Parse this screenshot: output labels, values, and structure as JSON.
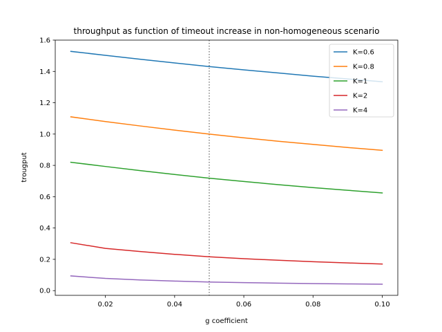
{
  "chart_data": {
    "type": "line",
    "title": "throughput as function of timeout increase in non-homogeneous scenario",
    "xlabel": "g coefficient",
    "ylabel": "trougput",
    "xlim": [
      0.0055,
      0.1045
    ],
    "ylim": [
      -0.03,
      1.6
    ],
    "xticks": [
      0.02,
      0.04,
      0.06,
      0.08,
      0.1
    ],
    "xtick_labels": [
      "0.02",
      "0.04",
      "0.06",
      "0.08",
      "0.10"
    ],
    "yticks": [
      0.0,
      0.2,
      0.4,
      0.6,
      0.8,
      1.0,
      1.2,
      1.4,
      1.6
    ],
    "ytick_labels": [
      "0.0",
      "0.2",
      "0.4",
      "0.6",
      "0.8",
      "1.0",
      "1.2",
      "1.4",
      "1.6"
    ],
    "grid": false,
    "legend_position": "top-right",
    "vline": {
      "x": 0.05,
      "style": "dotted",
      "color": "#808080"
    },
    "x": [
      0.01,
      0.02,
      0.03,
      0.04,
      0.05,
      0.06,
      0.07,
      0.08,
      0.09,
      0.1
    ],
    "series": [
      {
        "name": "K=0.6",
        "color": "#1f77b4",
        "values": [
          1.528,
          1.503,
          1.478,
          1.454,
          1.431,
          1.41,
          1.39,
          1.37,
          1.352,
          1.334
        ]
      },
      {
        "name": "K=0.8",
        "color": "#ff7f0e",
        "values": [
          1.11,
          1.08,
          1.052,
          1.025,
          1.0,
          0.976,
          0.954,
          0.934,
          0.914,
          0.896
        ]
      },
      {
        "name": "K=1",
        "color": "#2ca02c",
        "values": [
          0.82,
          0.793,
          0.767,
          0.742,
          0.718,
          0.697,
          0.677,
          0.658,
          0.641,
          0.624
        ]
      },
      {
        "name": "K=2",
        "color": "#d62728",
        "values": [
          0.306,
          0.27,
          0.25,
          0.232,
          0.216,
          0.204,
          0.194,
          0.185,
          0.177,
          0.17
        ]
      },
      {
        "name": "K=4",
        "color": "#9467bd",
        "values": [
          0.094,
          0.078,
          0.068,
          0.061,
          0.055,
          0.051,
          0.048,
          0.045,
          0.043,
          0.041
        ]
      }
    ]
  }
}
